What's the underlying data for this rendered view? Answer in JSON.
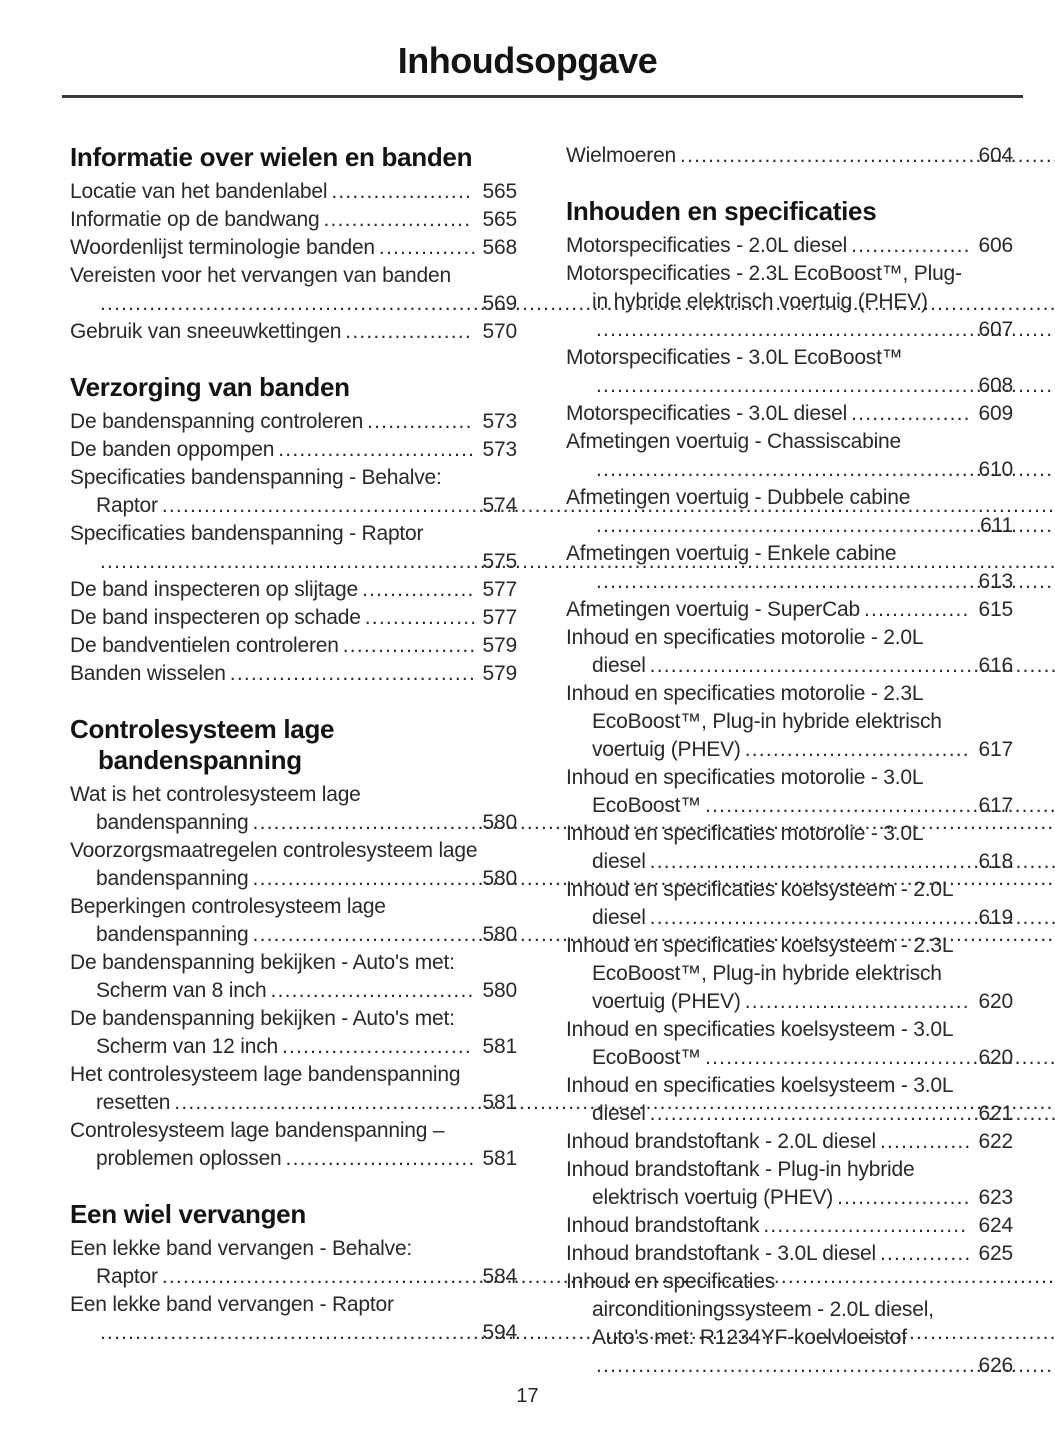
{
  "page": {
    "title": "Inhoudsopgave",
    "page_number": "17"
  },
  "colors": {
    "text_ink": "#2b282a",
    "heading_ink": "#161314",
    "divider": "#39383d",
    "background": "#ffffff"
  },
  "left_column": {
    "sections": [
      {
        "heading": "Informatie over wielen en banden",
        "entries": [
          {
            "title": "Locatie van het bandenlabel",
            "page": "565"
          },
          {
            "title": "Informatie op de bandwang",
            "page": "565"
          },
          {
            "title": "Woordenlijst terminologie banden",
            "page": "568"
          },
          {
            "title": "Vereisten voor het vervangen van banden",
            "page": "569"
          },
          {
            "title": "Gebruik van sneeuwkettingen",
            "page": "570"
          }
        ]
      },
      {
        "heading": "Verzorging van banden",
        "entries": [
          {
            "title": "De bandenspanning controleren",
            "page": "573"
          },
          {
            "title": "De banden oppompen",
            "page": "573"
          },
          {
            "title": "Specificaties bandenspanning - Behalve: Raptor",
            "page": "574"
          },
          {
            "title": "Specificaties bandenspanning - Raptor",
            "page": "575"
          },
          {
            "title": "De band inspecteren op slijtage",
            "page": "577"
          },
          {
            "title": "De band inspecteren op schade",
            "page": "577"
          },
          {
            "title": "De bandventielen controleren",
            "page": "579"
          },
          {
            "title": "Banden wisselen",
            "page": "579"
          }
        ]
      },
      {
        "heading": "Controlesysteem lage bandenspanning",
        "entries": [
          {
            "title": "Wat is het controlesysteem lage bandenspanning",
            "page": "580"
          },
          {
            "title": "Voorzorgsmaatregelen controlesysteem lage bandenspanning",
            "page": "580"
          },
          {
            "title": "Beperkingen controlesysteem lage bandenspanning",
            "page": "580"
          },
          {
            "title": "De bandenspanning bekijken - Auto's met: Scherm van 8 inch",
            "page": "580"
          },
          {
            "title": "De bandenspanning bekijken - Auto's met: Scherm van 12 inch",
            "page": "581"
          },
          {
            "title": "Het controlesysteem lage bandenspanning resetten",
            "page": "581"
          },
          {
            "title": "Controlesysteem lage bandenspanning – problemen oplossen",
            "page": "581"
          }
        ]
      },
      {
        "heading": "Een wiel vervangen",
        "entries": [
          {
            "title": "Een lekke band vervangen - Behalve: Raptor",
            "page": "584"
          },
          {
            "title": "Een lekke band vervangen - Raptor",
            "page": "594"
          }
        ]
      }
    ]
  },
  "right_column": {
    "sections": [
      {
        "heading": "",
        "entries": [
          {
            "title": "Wielmoeren",
            "page": "604"
          }
        ]
      },
      {
        "heading": "Inhouden en specificaties",
        "entries": [
          {
            "title": "Motorspecificaties - 2.0L diesel",
            "page": "606"
          },
          {
            "title": "Motorspecificaties - 2.3L EcoBoost™, Plug-in hybride elektrisch voertuig (PHEV)",
            "page": "607"
          },
          {
            "title": "Motorspecificaties - 3.0L EcoBoost™",
            "page": "608"
          },
          {
            "title": "Motorspecificaties - 3.0L diesel",
            "page": "609"
          },
          {
            "title": "Afmetingen voertuig - Chassiscabine",
            "page": "610"
          },
          {
            "title": "Afmetingen voertuig - Dubbele cabine",
            "page": "611"
          },
          {
            "title": "Afmetingen voertuig - Enkele cabine",
            "page": "613"
          },
          {
            "title": "Afmetingen voertuig - SuperCab",
            "page": "615"
          },
          {
            "title": "Inhoud en specificaties motorolie - 2.0L diesel",
            "page": "616"
          },
          {
            "title": "Inhoud en specificaties motorolie - 2.3L EcoBoost™, Plug-in hybride elektrisch voertuig (PHEV)",
            "page": "617"
          },
          {
            "title": "Inhoud en specificaties motorolie - 3.0L EcoBoost™",
            "page": "617"
          },
          {
            "title": "Inhoud en specificaties motorolie - 3.0L diesel",
            "page": "618"
          },
          {
            "title": "Inhoud en specificaties koelsysteem - 2.0L diesel",
            "page": "619"
          },
          {
            "title": "Inhoud en specificaties koelsysteem - 2.3L EcoBoost™, Plug-in hybride elektrisch voertuig (PHEV)",
            "page": "620"
          },
          {
            "title": "Inhoud en specificaties koelsysteem - 3.0L EcoBoost™",
            "page": "620"
          },
          {
            "title": "Inhoud en specificaties koelsysteem - 3.0L diesel",
            "page": "621"
          },
          {
            "title": "Inhoud brandstoftank - 2.0L diesel",
            "page": "622"
          },
          {
            "title": "Inhoud brandstoftank - Plug-in hybride elektrisch voertuig (PHEV)",
            "page": "623"
          },
          {
            "title": "Inhoud brandstoftank",
            "page": "624"
          },
          {
            "title": "Inhoud brandstoftank - 3.0L diesel",
            "page": "625"
          },
          {
            "title": "Inhoud en specificaties airconditioningssysteem - 2.0L diesel, Auto's met: R1234YF-koelvloeistof",
            "page": "626"
          }
        ]
      }
    ]
  }
}
